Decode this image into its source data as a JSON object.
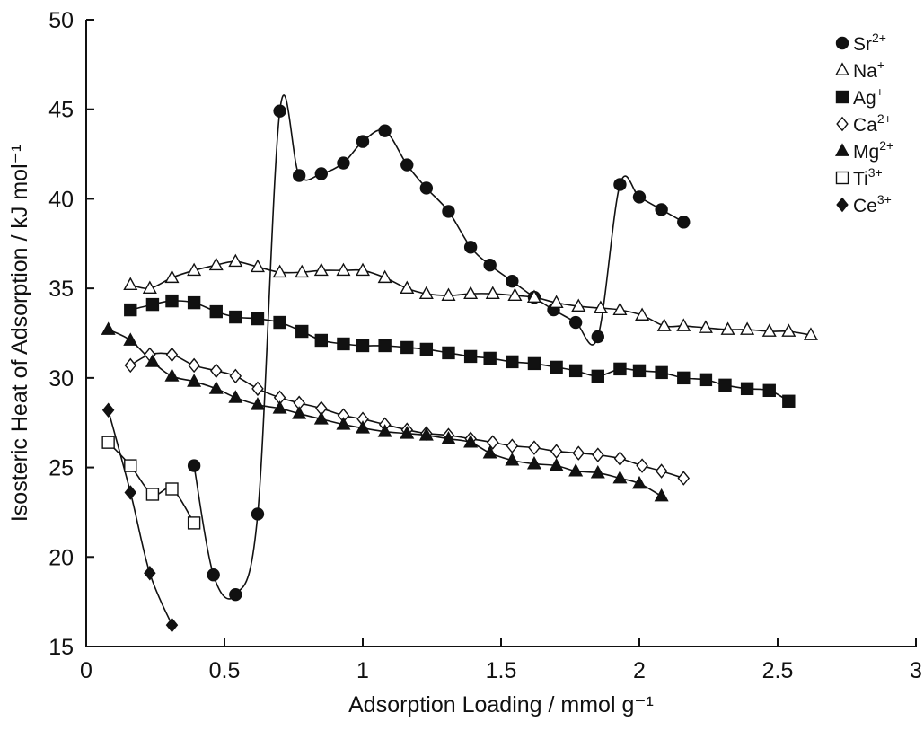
{
  "chart_data": {
    "type": "line",
    "xlabel": "Adsorption Loading / mmol g⁻¹",
    "ylabel": "Isosteric Heat of Adsorption / kJ mol⁻¹",
    "xlim": [
      0,
      3
    ],
    "ylim": [
      15,
      50
    ],
    "xticks": [
      0,
      0.5,
      1,
      1.5,
      2,
      2.5,
      3
    ],
    "xtick_labels": [
      "0",
      "0.5",
      "1",
      "1.5",
      "2",
      "2.5",
      "3"
    ],
    "yticks": [
      15,
      20,
      25,
      30,
      35,
      40,
      45,
      50
    ],
    "ytick_labels": [
      "15",
      "20",
      "25",
      "30",
      "35",
      "40",
      "45",
      "50"
    ],
    "grid": false,
    "legend_position": "top-right",
    "series": [
      {
        "name": "Sr2+",
        "label_base": "Sr",
        "label_sup": "2+",
        "marker": "circle",
        "color": "#111111",
        "segments": [
          [
            [
              0.39,
              25.1
            ],
            [
              0.46,
              19.0
            ],
            [
              0.54,
              17.9
            ],
            [
              0.62,
              22.4
            ],
            [
              0.7,
              44.9
            ],
            [
              0.77,
              41.3
            ],
            [
              0.85,
              41.4
            ],
            [
              0.93,
              42.0
            ],
            [
              1.0,
              43.2
            ],
            [
              1.08,
              43.8
            ],
            [
              1.16,
              41.9
            ],
            [
              1.23,
              40.6
            ],
            [
              1.31,
              39.3
            ],
            [
              1.39,
              37.3
            ],
            [
              1.46,
              36.3
            ],
            [
              1.54,
              35.4
            ],
            [
              1.62,
              34.5
            ],
            [
              1.69,
              33.8
            ],
            [
              1.77,
              33.1
            ],
            [
              1.85,
              32.3
            ],
            [
              1.93,
              40.8
            ],
            [
              2.0,
              40.1
            ],
            [
              2.08,
              39.4
            ],
            [
              2.16,
              38.7
            ]
          ]
        ]
      },
      {
        "name": "Na+",
        "label_base": "Na",
        "label_sup": "+",
        "marker": "triangle-open",
        "color": "#111111",
        "segments": [
          [
            [
              0.16,
              35.2
            ],
            [
              0.23,
              35.0
            ],
            [
              0.31,
              35.6
            ],
            [
              0.39,
              36.0
            ],
            [
              0.47,
              36.3
            ],
            [
              0.54,
              36.5
            ],
            [
              0.62,
              36.2
            ],
            [
              0.7,
              35.9
            ],
            [
              0.78,
              35.9
            ],
            [
              0.85,
              36.0
            ],
            [
              0.93,
              36.0
            ],
            [
              1.0,
              36.0
            ],
            [
              1.08,
              35.6
            ],
            [
              1.16,
              35.0
            ],
            [
              1.23,
              34.7
            ],
            [
              1.31,
              34.6
            ],
            [
              1.39,
              34.7
            ],
            [
              1.47,
              34.7
            ],
            [
              1.55,
              34.6
            ],
            [
              1.62,
              34.5
            ],
            [
              1.7,
              34.2
            ],
            [
              1.78,
              34.0
            ],
            [
              1.86,
              33.9
            ],
            [
              1.93,
              33.8
            ],
            [
              2.01,
              33.5
            ],
            [
              2.09,
              32.9
            ],
            [
              2.16,
              32.9
            ],
            [
              2.24,
              32.8
            ],
            [
              2.32,
              32.7
            ],
            [
              2.39,
              32.7
            ],
            [
              2.47,
              32.6
            ],
            [
              2.54,
              32.6
            ],
            [
              2.62,
              32.4
            ]
          ]
        ]
      },
      {
        "name": "Ag+",
        "label_base": "Ag",
        "label_sup": "+",
        "marker": "square",
        "color": "#111111",
        "segments": [
          [
            [
              0.16,
              33.8
            ],
            [
              0.24,
              34.1
            ],
            [
              0.31,
              34.3
            ],
            [
              0.39,
              34.2
            ],
            [
              0.47,
              33.7
            ],
            [
              0.54,
              33.4
            ],
            [
              0.62,
              33.3
            ],
            [
              0.7,
              33.1
            ],
            [
              0.78,
              32.6
            ],
            [
              0.85,
              32.1
            ],
            [
              0.93,
              31.9
            ],
            [
              1.0,
              31.8
            ],
            [
              1.08,
              31.8
            ],
            [
              1.16,
              31.7
            ],
            [
              1.23,
              31.6
            ],
            [
              1.31,
              31.4
            ],
            [
              1.39,
              31.2
            ],
            [
              1.46,
              31.1
            ],
            [
              1.54,
              30.9
            ],
            [
              1.62,
              30.8
            ],
            [
              1.7,
              30.6
            ],
            [
              1.77,
              30.4
            ],
            [
              1.85,
              30.1
            ],
            [
              1.93,
              30.5
            ],
            [
              2.0,
              30.4
            ],
            [
              2.08,
              30.3
            ],
            [
              2.16,
              30.0
            ],
            [
              2.24,
              29.9
            ],
            [
              2.31,
              29.6
            ],
            [
              2.39,
              29.4
            ],
            [
              2.47,
              29.3
            ],
            [
              2.54,
              28.7
            ]
          ]
        ]
      },
      {
        "name": "Ca2+",
        "label_base": "Ca",
        "label_sup": "2+",
        "marker": "diamond-open",
        "color": "#111111",
        "segments": [
          [
            [
              0.16,
              30.7
            ],
            [
              0.23,
              31.3
            ],
            [
              0.31,
              31.3
            ],
            [
              0.39,
              30.7
            ],
            [
              0.47,
              30.4
            ],
            [
              0.54,
              30.1
            ],
            [
              0.62,
              29.4
            ],
            [
              0.7,
              28.9
            ],
            [
              0.77,
              28.6
            ],
            [
              0.85,
              28.3
            ],
            [
              0.93,
              27.9
            ],
            [
              1.0,
              27.7
            ],
            [
              1.08,
              27.4
            ],
            [
              1.16,
              27.1
            ],
            [
              1.23,
              26.9
            ],
            [
              1.31,
              26.8
            ],
            [
              1.39,
              26.6
            ],
            [
              1.47,
              26.4
            ],
            [
              1.54,
              26.2
            ],
            [
              1.62,
              26.1
            ],
            [
              1.7,
              25.9
            ],
            [
              1.78,
              25.8
            ],
            [
              1.85,
              25.7
            ],
            [
              1.93,
              25.5
            ],
            [
              2.01,
              25.1
            ],
            [
              2.08,
              24.8
            ],
            [
              2.16,
              24.4
            ]
          ]
        ]
      },
      {
        "name": "Mg2+",
        "label_base": "Mg",
        "label_sup": "2+",
        "marker": "triangle",
        "color": "#111111",
        "segments": [
          [
            [
              0.08,
              32.7
            ],
            [
              0.16,
              32.1
            ],
            [
              0.24,
              30.9
            ],
            [
              0.31,
              30.1
            ],
            [
              0.39,
              29.8
            ],
            [
              0.47,
              29.4
            ],
            [
              0.54,
              28.9
            ],
            [
              0.62,
              28.5
            ],
            [
              0.7,
              28.3
            ],
            [
              0.77,
              28.0
            ],
            [
              0.85,
              27.7
            ],
            [
              0.93,
              27.4
            ],
            [
              1.0,
              27.2
            ],
            [
              1.08,
              27.0
            ],
            [
              1.16,
              26.9
            ],
            [
              1.23,
              26.8
            ],
            [
              1.31,
              26.6
            ],
            [
              1.39,
              26.4
            ],
            [
              1.46,
              25.8
            ],
            [
              1.54,
              25.4
            ],
            [
              1.62,
              25.2
            ],
            [
              1.7,
              25.1
            ],
            [
              1.77,
              24.8
            ],
            [
              1.85,
              24.7
            ],
            [
              1.93,
              24.4
            ],
            [
              2.0,
              24.1
            ],
            [
              2.08,
              23.4
            ]
          ]
        ]
      },
      {
        "name": "Ti3+",
        "label_base": "Ti",
        "label_sup": "3+",
        "marker": "square-open",
        "color": "#111111",
        "segments": [
          [
            [
              0.08,
              26.4
            ],
            [
              0.16,
              25.1
            ],
            [
              0.24,
              23.5
            ],
            [
              0.31,
              23.8
            ],
            [
              0.39,
              21.9
            ]
          ]
        ]
      },
      {
        "name": "Ce3+",
        "label_base": "Ce",
        "label_sup": "3+",
        "marker": "diamond",
        "color": "#111111",
        "segments": [
          [
            [
              0.08,
              28.2
            ],
            [
              0.16,
              23.6
            ],
            [
              0.23,
              19.1
            ],
            [
              0.31,
              16.2
            ]
          ]
        ]
      }
    ]
  }
}
